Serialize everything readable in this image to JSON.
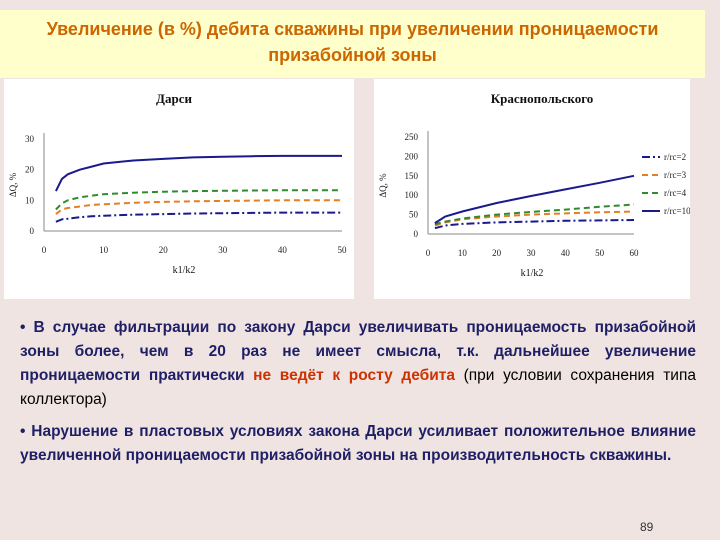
{
  "slide": {
    "title": "Увеличение (в %) дебита скважины при увеличении проницаемости призабойной зоны",
    "bullet1_a": "• В случае фильтрации по закону Дарси увеличивать проницаемость призабойной зоны более, чем в 20 раз не имеет смысла, т.к. дальнейшее увеличение проницаемости практически ",
    "bullet1_b": "не ведёт к росту дебита",
    "bullet1_c": " (при условии сохранения типа коллектора)",
    "bullet2": "• Нарушение в пластовых условиях закона Дарси усиливает положительное влияние увеличенной проницаемости призабойной зоны на производительность скважины.",
    "page_number": "89"
  },
  "chart_data": [
    {
      "type": "line",
      "title": "Дарси",
      "xlabel": "k1/k2",
      "ylabel": "ΔQ, %",
      "xlim": [
        0,
        50
      ],
      "ylim": [
        0,
        30
      ],
      "xticks": [
        "0",
        "10",
        "20",
        "30",
        "40",
        "50"
      ],
      "yticks": [
        "0",
        "10",
        "20",
        "30"
      ],
      "series": [
        {
          "color": "#1a1a8c",
          "dash": "dashdot",
          "x": [
            2,
            3,
            4,
            6,
            8,
            10,
            15,
            20,
            25,
            30,
            35,
            40,
            45,
            50
          ],
          "y": [
            3,
            3.8,
            4,
            4.5,
            4.8,
            5,
            5.3,
            5.5,
            5.7,
            5.8,
            5.9,
            6,
            6,
            6
          ]
        },
        {
          "color": "#e67e22",
          "dash": "dashed",
          "x": [
            2,
            3,
            4,
            6,
            8,
            10,
            15,
            20,
            25,
            30,
            35,
            40,
            45,
            50
          ],
          "y": [
            5.5,
            7,
            7.5,
            8,
            8.5,
            8.7,
            9.2,
            9.5,
            9.7,
            9.8,
            9.9,
            10,
            10,
            10
          ]
        },
        {
          "color": "#2e8b2e",
          "dash": "dashed",
          "x": [
            2,
            3,
            4,
            6,
            8,
            10,
            15,
            20,
            25,
            30,
            35,
            40,
            45,
            50
          ],
          "y": [
            7,
            9,
            10,
            11,
            11.5,
            12,
            12.5,
            12.8,
            13,
            13.1,
            13.2,
            13.3,
            13.3,
            13.3
          ]
        },
        {
          "color": "#1a1a8c",
          "dash": "solid",
          "x": [
            2,
            3,
            4,
            6,
            8,
            10,
            15,
            20,
            25,
            30,
            35,
            40,
            45,
            50
          ],
          "y": [
            13,
            17,
            18.5,
            20,
            21,
            22,
            23,
            23.5,
            24,
            24.2,
            24.4,
            24.5,
            24.5,
            24.5
          ]
        }
      ]
    },
    {
      "type": "line",
      "title": "Краснопольского",
      "xlabel": "k1/k2",
      "ylabel": "ΔQ, %",
      "xlim": [
        0,
        60
      ],
      "ylim": [
        0,
        250
      ],
      "xticks": [
        "0",
        "10",
        "20",
        "30",
        "40",
        "50",
        "60"
      ],
      "yticks": [
        "0",
        "50",
        "100",
        "150",
        "200",
        "250"
      ],
      "legend": "right",
      "series": [
        {
          "name": "r/rc=2",
          "color": "#1a1a8c",
          "dash": "dashdot",
          "x": [
            2,
            5,
            10,
            20,
            30,
            40,
            50,
            60
          ],
          "y": [
            15,
            22,
            26,
            30,
            32,
            34,
            35,
            36
          ]
        },
        {
          "name": "r/rc=3",
          "color": "#e67e22",
          "dash": "dashed",
          "x": [
            2,
            5,
            10,
            20,
            30,
            40,
            50,
            60
          ],
          "y": [
            22,
            30,
            38,
            45,
            50,
            53,
            56,
            58
          ]
        },
        {
          "name": "r/rc=4",
          "color": "#2e8b2e",
          "dash": "dashed",
          "x": [
            2,
            5,
            10,
            20,
            30,
            40,
            50,
            60
          ],
          "y": [
            25,
            32,
            40,
            50,
            57,
            63,
            70,
            76
          ]
        },
        {
          "name": "r/rc=10",
          "color": "#1a1a8c",
          "dash": "solid",
          "x": [
            2,
            5,
            10,
            20,
            30,
            40,
            50,
            60
          ],
          "y": [
            28,
            45,
            58,
            80,
            98,
            115,
            132,
            150
          ]
        }
      ]
    }
  ]
}
